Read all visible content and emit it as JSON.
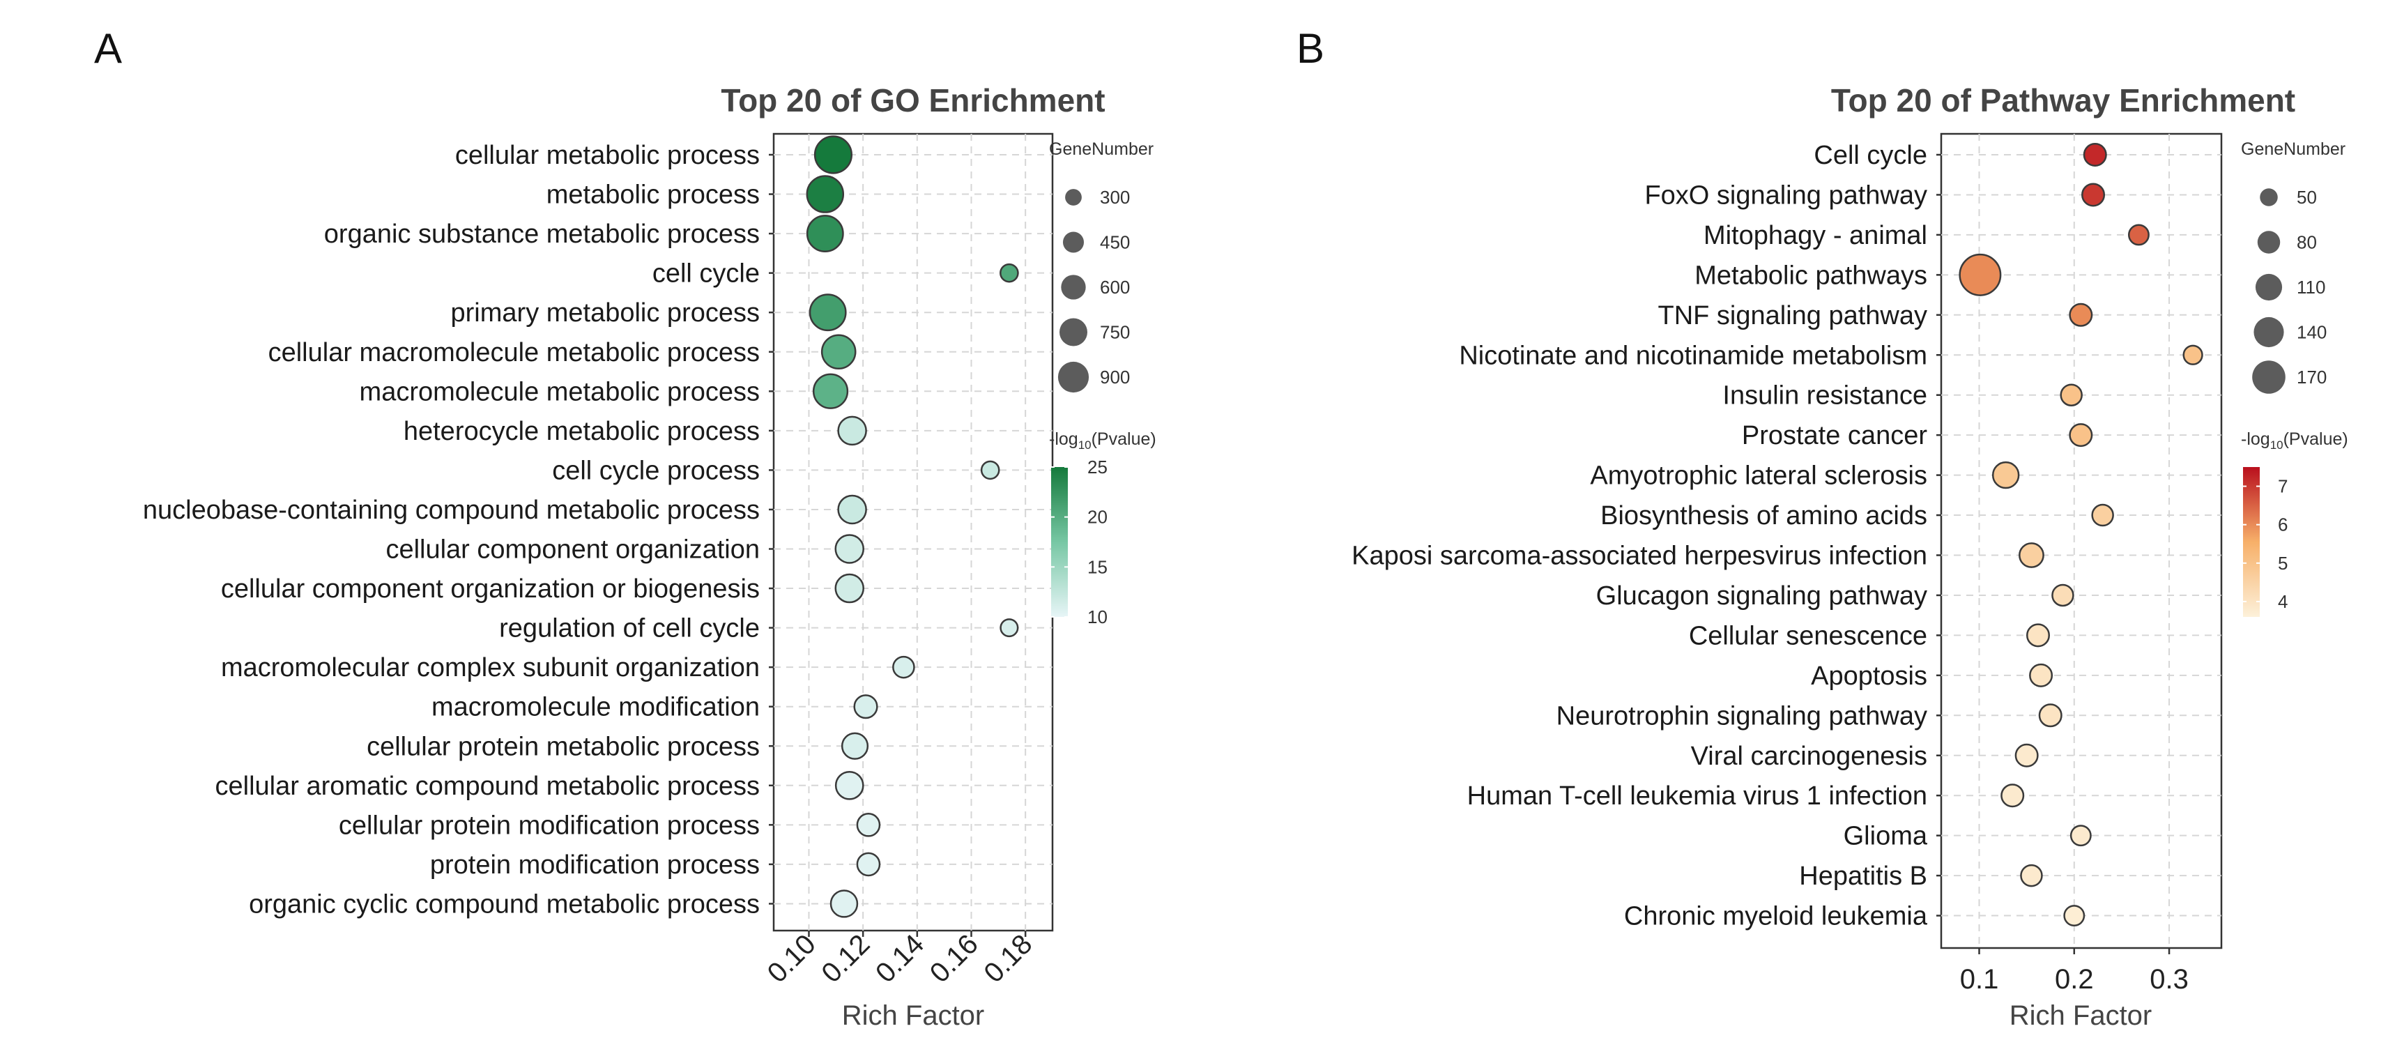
{
  "panels": [
    {
      "label": "A",
      "chart_data": {
        "type": "scatter",
        "title": "Top 20 of GO Enrichment",
        "xlabel": "Rich Factor",
        "ylabel": "",
        "xlim": [
          0.087,
          0.19
        ],
        "xticks": [
          0.1,
          0.12,
          0.14,
          0.16,
          0.18
        ],
        "xtick_labels": [
          "0.10",
          "0.12",
          "0.14",
          "0.16",
          "0.18"
        ],
        "xtick_rotation": -45,
        "grid": true,
        "color_scale": {
          "low": "#e7f5f7",
          "mid": "#77c7a4",
          "high": "#157a3c",
          "min": 10,
          "max": 25
        },
        "categories": [
          "cellular metabolic process",
          "metabolic process",
          "organic substance metabolic process",
          "cell cycle",
          "primary metabolic process",
          "cellular macromolecule metabolic process",
          "macromolecule metabolic process",
          "heterocycle metabolic process",
          "cell cycle process",
          "nucleobase-containing compound metabolic process",
          "cellular component organization",
          "cellular component organization or biogenesis",
          "regulation of cell cycle",
          "macromolecular complex subunit organization",
          "macromolecule modification",
          "cellular protein metabolic process",
          "cellular aromatic compound metabolic process",
          "cellular protein modification process",
          "protein modification process",
          "organic cyclic compound metabolic process"
        ],
        "rich_factor": [
          0.109,
          0.106,
          0.106,
          0.174,
          0.107,
          0.111,
          0.108,
          0.116,
          0.167,
          0.116,
          0.115,
          0.115,
          0.174,
          0.135,
          0.121,
          0.117,
          0.115,
          0.122,
          0.122,
          0.113
        ],
        "gene_number": [
          920,
          900,
          880,
          250,
          880,
          780,
          800,
          560,
          250,
          560,
          560,
          560,
          240,
          340,
          390,
          480,
          540,
          380,
          380,
          510
        ],
        "neg_log10_pvalue": [
          25.5,
          24.5,
          23.0,
          20.5,
          21.5,
          20.0,
          19.5,
          12.0,
          12.0,
          12.0,
          11.5,
          11.5,
          11.0,
          11.0,
          11.0,
          11.0,
          10.5,
          10.5,
          10.5,
          10.5
        ],
        "size_legend": {
          "title": "GeneNumber",
          "values": [
            300,
            450,
            600,
            750,
            900
          ],
          "labels": [
            "300",
            "450",
            "600",
            "750",
            "900"
          ]
        },
        "color_legend": {
          "title_prefix": "-log",
          "title_sub": "10",
          "title_suffix": "(Pvalue)",
          "ticks": [
            10,
            15,
            20,
            25
          ],
          "labels": [
            "10",
            "15",
            "20",
            "25"
          ]
        }
      }
    },
    {
      "label": "B",
      "chart_data": {
        "type": "scatter",
        "title": "Top 20 of Pathway Enrichment",
        "xlabel": "Rich Factor",
        "ylabel": "",
        "xlim": [
          0.06,
          0.355
        ],
        "xticks": [
          0.1,
          0.2,
          0.3
        ],
        "xtick_labels": [
          "0.1",
          "0.2",
          "0.3"
        ],
        "xtick_rotation": 0,
        "grid": true,
        "color_scale": {
          "low": "#fdf1da",
          "mid": "#f7b069",
          "high": "#b90f1d",
          "min": 3.6,
          "max": 7.5
        },
        "categories": [
          "Cell cycle",
          "FoxO signaling pathway",
          "Mitophagy - animal",
          "Metabolic pathways",
          "TNF signaling pathway",
          "Nicotinate and nicotinamide metabolism",
          "Insulin resistance",
          "Prostate cancer",
          "Amyotrophic lateral sclerosis",
          "Biosynthesis of amino acids",
          "Kaposi sarcoma-associated herpesvirus infection",
          "Glucagon signaling pathway",
          "Cellular senescence",
          "Apoptosis",
          "Neurotrophin signaling pathway",
          "Viral carcinogenesis",
          "Human T-cell leukemia virus 1 infection",
          "Glioma",
          "Hepatitis B",
          "Chronic myeloid leukemia"
        ],
        "rich_factor": [
          0.222,
          0.22,
          0.268,
          0.101,
          0.207,
          0.325,
          0.197,
          0.207,
          0.128,
          0.23,
          0.155,
          0.188,
          0.162,
          0.165,
          0.175,
          0.15,
          0.135,
          0.207,
          0.155,
          0.2
        ],
        "gene_number": [
          55,
          55,
          45,
          185,
          55,
          40,
          50,
          55,
          75,
          50,
          65,
          50,
          55,
          55,
          55,
          55,
          55,
          45,
          50,
          45
        ],
        "neg_log10_pvalue": [
          7.2,
          7.0,
          6.5,
          6.0,
          6.0,
          5.0,
          5.0,
          5.0,
          4.8,
          4.6,
          4.6,
          4.2,
          4.0,
          4.0,
          4.0,
          3.8,
          3.8,
          3.8,
          3.8,
          3.7
        ],
        "size_legend": {
          "title": "GeneNumber",
          "values": [
            50,
            80,
            110,
            140,
            170
          ],
          "labels": [
            "50",
            "80",
            "110",
            "140",
            "170"
          ]
        },
        "color_legend": {
          "title_prefix": "-log",
          "title_sub": "10",
          "title_suffix": "(Pvalue)",
          "ticks": [
            4,
            5,
            6,
            7
          ],
          "labels": [
            "4",
            "5",
            "6",
            "7"
          ]
        }
      }
    }
  ]
}
